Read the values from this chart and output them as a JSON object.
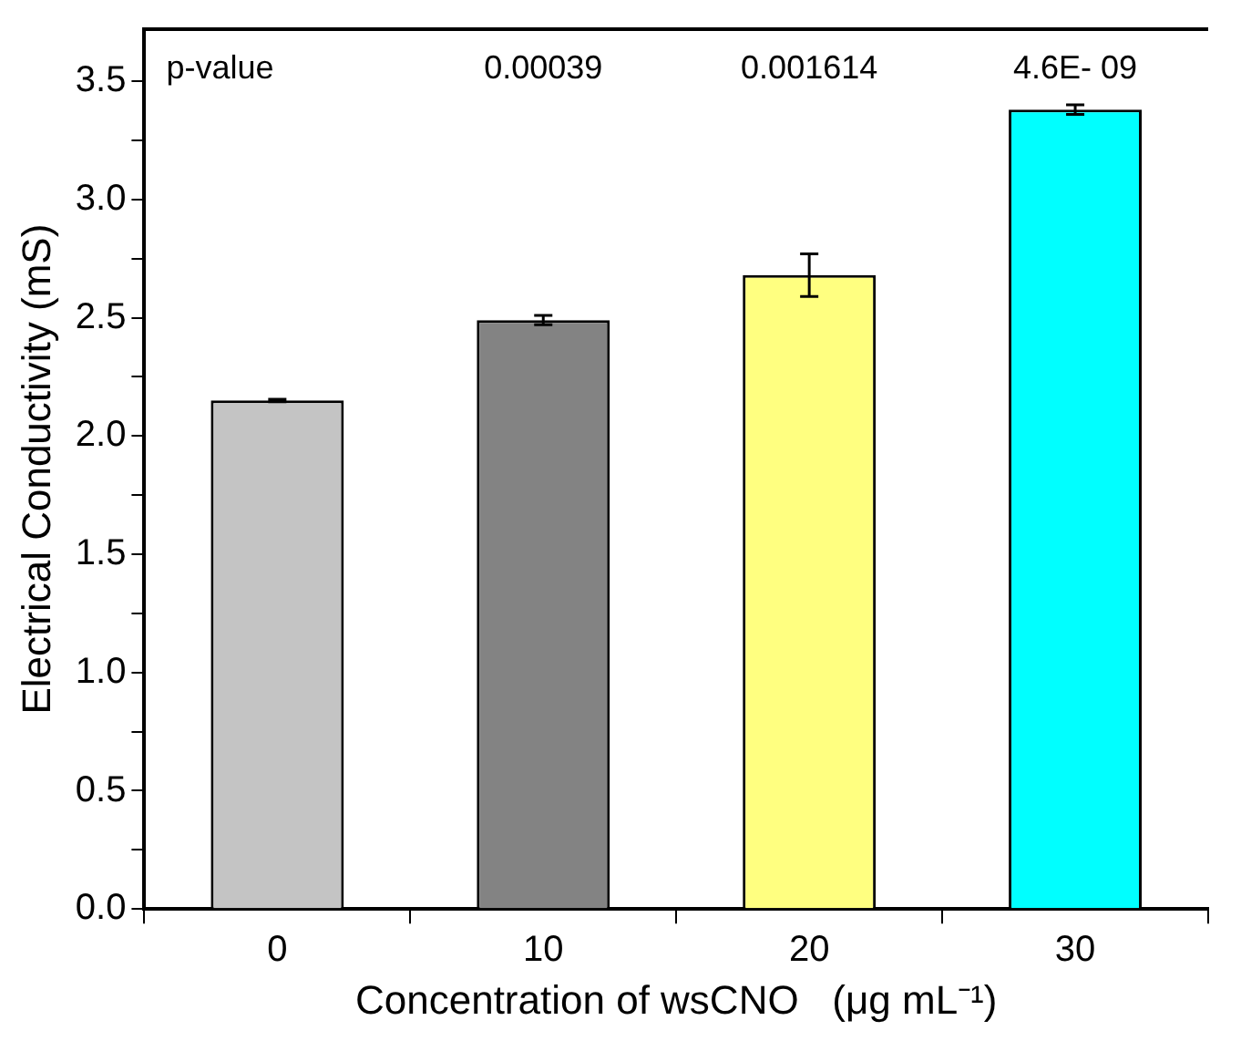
{
  "chart_data": {
    "type": "bar",
    "xlabel": "Concentration of wsCNO   (μg mL⁻¹)",
    "ylabel": "Electrical Conductivity (mS)",
    "categories": [
      "0",
      "10",
      "20",
      "30"
    ],
    "values": [
      2.15,
      2.49,
      2.68,
      3.38
    ],
    "colors": [
      "#c4c4c4",
      "#838383",
      "#ffff80",
      "#00ffff"
    ],
    "errors": [
      0.005,
      0.02,
      0.09,
      0.02
    ],
    "ylim": [
      0,
      3.72
    ],
    "yticks": [
      {
        "value": 0,
        "label": "0.0"
      },
      {
        "value": 0.25,
        "label": null
      },
      {
        "value": 0.5,
        "label": "0.5"
      },
      {
        "value": 0.75,
        "label": null
      },
      {
        "value": 1,
        "label": "1.0"
      },
      {
        "value": 1.25,
        "label": null
      },
      {
        "value": 1.5,
        "label": "1.5"
      },
      {
        "value": 1.75,
        "label": null
      },
      {
        "value": 2,
        "label": "2.0"
      },
      {
        "value": 2.25,
        "label": null
      },
      {
        "value": 2.5,
        "label": "2.5"
      },
      {
        "value": 2.75,
        "label": null
      },
      {
        "value": 3,
        "label": "3.0"
      },
      {
        "value": 3.25,
        "label": null
      },
      {
        "value": 3.5,
        "label": "3.5"
      }
    ],
    "annotations": [
      "p-value",
      "0.00039",
      "0.001614",
      "4.6E- 09"
    ],
    "grid": false,
    "legend": false
  }
}
